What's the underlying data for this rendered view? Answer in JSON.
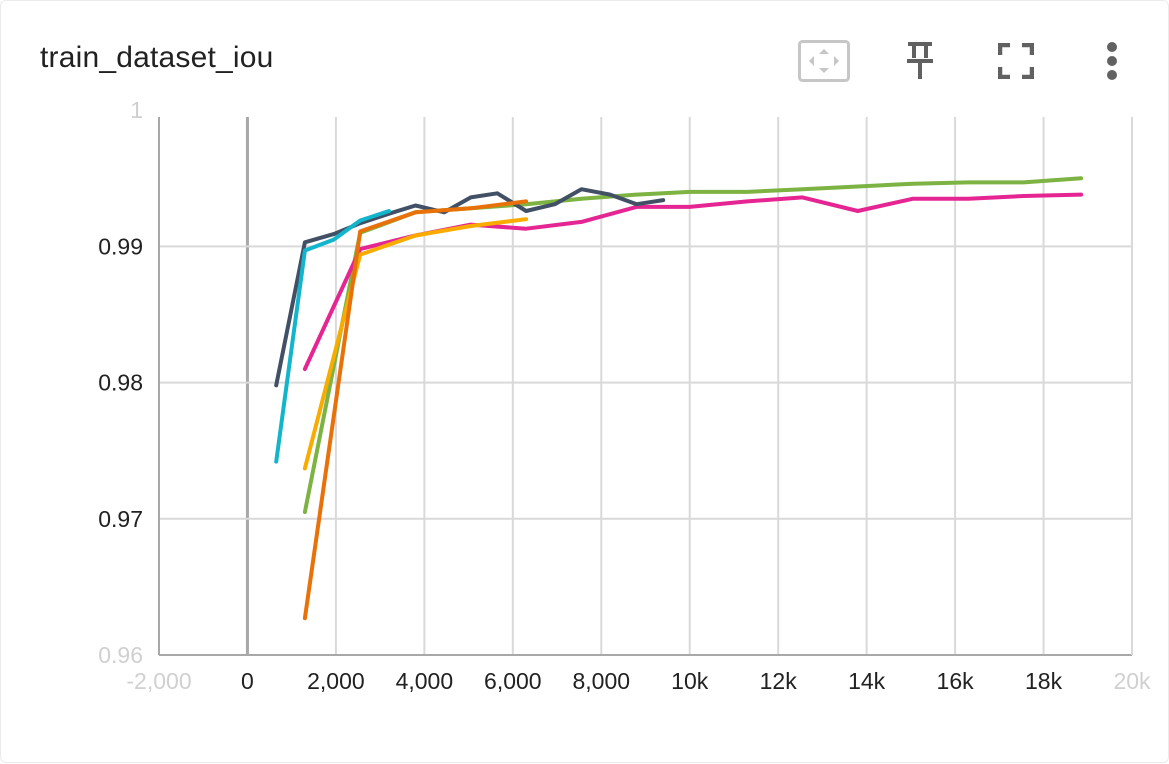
{
  "card": {
    "title": "train_dataset_iou"
  },
  "toolbar": {
    "buttons": [
      {
        "name": "fit-domain-button",
        "icon": "fit-to-data-icon"
      },
      {
        "name": "pin-button",
        "icon": "pin-icon"
      },
      {
        "name": "fullscreen-button",
        "icon": "fullscreen-icon"
      },
      {
        "name": "more-options-button",
        "icon": "more-vert-icon"
      }
    ]
  },
  "colors": {
    "grid": "#d9d9d9",
    "axis": "#a8a8a8",
    "zero_line": "#a8a8a8"
  },
  "chart_data": {
    "type": "line",
    "title": "",
    "xlabel": "",
    "ylabel": "",
    "xlim": [
      -2000,
      20000
    ],
    "ylim": [
      0.96,
      0.9995
    ],
    "grid": true,
    "x_ticks": [
      {
        "value": -2000,
        "label": "-2,000",
        "faded": true
      },
      {
        "value": 0,
        "label": "0"
      },
      {
        "value": 2000,
        "label": "2,000"
      },
      {
        "value": 4000,
        "label": "4,000"
      },
      {
        "value": 6000,
        "label": "6,000"
      },
      {
        "value": 8000,
        "label": "8,000"
      },
      {
        "value": 10000,
        "label": "10k"
      },
      {
        "value": 12000,
        "label": "12k"
      },
      {
        "value": 14000,
        "label": "14k"
      },
      {
        "value": 16000,
        "label": "16k"
      },
      {
        "value": 18000,
        "label": "18k"
      },
      {
        "value": 20000,
        "label": "20k",
        "faded": true
      }
    ],
    "y_ticks": [
      {
        "value": 0.96,
        "label": "0.96",
        "faded": true
      },
      {
        "value": 0.97,
        "label": "0.97"
      },
      {
        "value": 0.98,
        "label": "0.98"
      },
      {
        "value": 0.99,
        "label": "0.99"
      },
      {
        "value": 1.0,
        "label": "1",
        "faded": true
      }
    ],
    "series": [
      {
        "color": "#7cb342",
        "x": [
          1300,
          2550,
          3800,
          5050,
          6300,
          7550,
          8800,
          10000,
          11300,
          12550,
          13800,
          15050,
          16300,
          17550,
          18850
        ],
        "y": [
          0.9705,
          0.991,
          0.9925,
          0.9928,
          0.9931,
          0.9935,
          0.9938,
          0.994,
          0.994,
          0.9942,
          0.9944,
          0.9946,
          0.9947,
          0.9947,
          0.995
        ]
      },
      {
        "color": "#e52592",
        "x": [
          1300,
          2550,
          3800,
          5050,
          6300,
          7550,
          8800,
          10000,
          11300,
          12550,
          13800,
          15050,
          16300,
          17550,
          18850
        ],
        "y": [
          0.981,
          0.9898,
          0.9908,
          0.9916,
          0.9913,
          0.9918,
          0.9929,
          0.9929,
          0.9933,
          0.9936,
          0.9926,
          0.9935,
          0.9935,
          0.9937,
          0.9938
        ]
      },
      {
        "color": "#425066",
        "x": [
          650,
          1300,
          1950,
          2550,
          3200,
          3800,
          4450,
          5050,
          5650,
          6300,
          6950,
          7550,
          8200,
          8800,
          9400
        ],
        "y": [
          0.9798,
          0.9903,
          0.9909,
          0.9917,
          0.9924,
          0.993,
          0.9925,
          0.9936,
          0.9939,
          0.9926,
          0.9931,
          0.9942,
          0.9938,
          0.9931,
          0.9934
        ]
      },
      {
        "color": "#12b5cb",
        "x": [
          650,
          1300,
          1950,
          2550,
          3200
        ],
        "y": [
          0.9742,
          0.9897,
          0.9905,
          0.9919,
          0.9926
        ]
      },
      {
        "color": "#f9ab00",
        "x": [
          1300,
          2550,
          3800,
          5050,
          6300
        ],
        "y": [
          0.9737,
          0.9894,
          0.9908,
          0.9915,
          0.992
        ]
      },
      {
        "color": "#e8710a",
        "x": [
          1300,
          2550,
          3800,
          5050,
          6300
        ],
        "y": [
          0.9627,
          0.9911,
          0.9925,
          0.9928,
          0.9933
        ]
      }
    ]
  }
}
